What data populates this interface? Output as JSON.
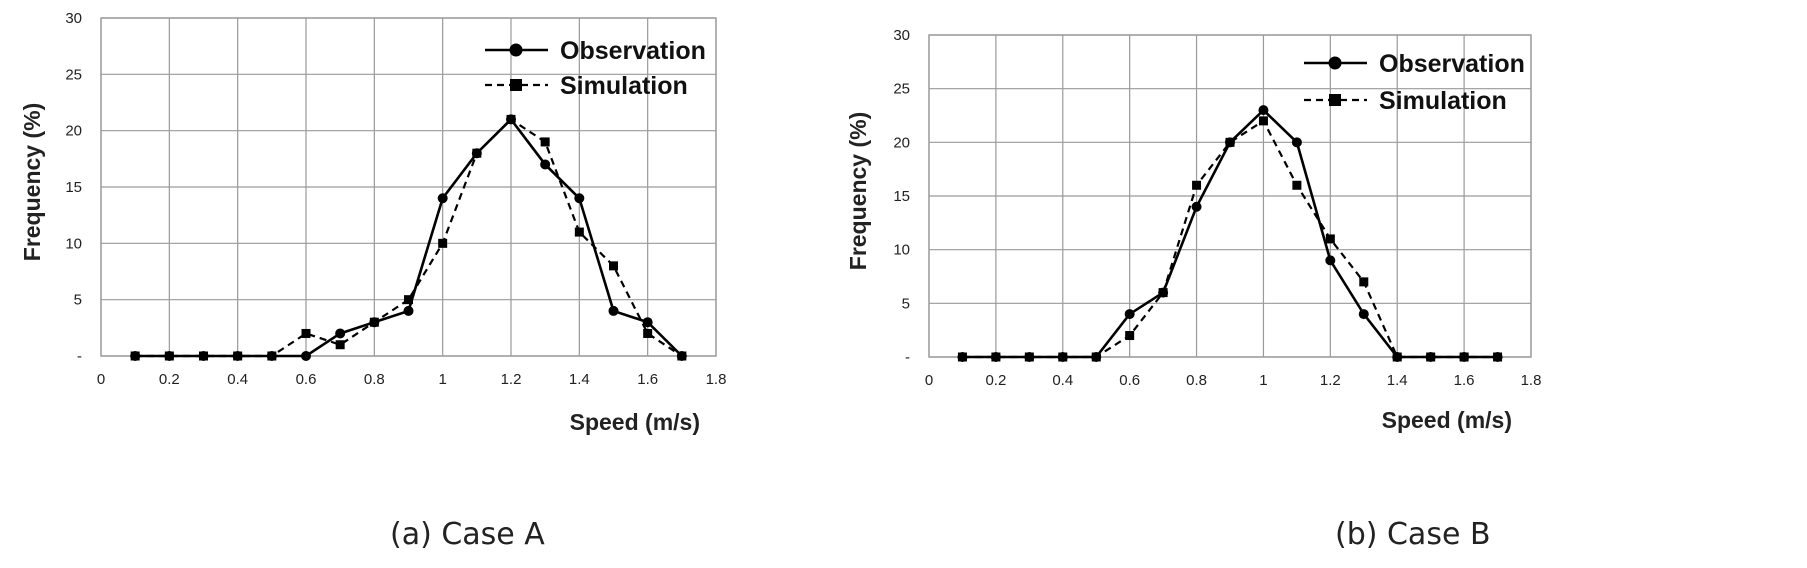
{
  "chart_data": [
    {
      "type": "line",
      "caption": "(a) Case A",
      "xlabel": "Speed (m/s)",
      "ylabel": "Frequency (%)",
      "xlim": [
        0,
        1.8
      ],
      "ylim": [
        0,
        30
      ],
      "x_ticks": [
        "0",
        "0.2",
        "0.4",
        "0.6",
        "0.8",
        "1",
        "1.2",
        "1.4",
        "1.6",
        "1.8"
      ],
      "y_ticks": [
        "-",
        "5",
        "10",
        "15",
        "20",
        "25",
        "30"
      ],
      "grid": true,
      "legend_position": "top-right",
      "x": [
        0.1,
        0.2,
        0.3,
        0.4,
        0.5,
        0.6,
        0.7,
        0.8,
        0.9,
        1.0,
        1.1,
        1.2,
        1.3,
        1.4,
        1.5,
        1.6,
        1.7
      ],
      "series": [
        {
          "name": "Observation",
          "marker": "circle",
          "style": "solid",
          "values": [
            0,
            0,
            0,
            0,
            0,
            0,
            2,
            3,
            4,
            14,
            18,
            21,
            17,
            14,
            4,
            3,
            0
          ]
        },
        {
          "name": "Simulation",
          "marker": "square",
          "style": "dashed",
          "values": [
            0,
            0,
            0,
            0,
            0,
            2,
            1,
            3,
            5,
            10,
            18,
            21,
            19,
            11,
            8,
            2,
            0
          ]
        }
      ]
    },
    {
      "type": "line",
      "caption": "(b) Case B",
      "xlabel": "Speed (m/s)",
      "ylabel": "Frequency (%)",
      "xlim": [
        0,
        1.8
      ],
      "ylim": [
        0,
        30
      ],
      "x_ticks": [
        "0",
        "0.2",
        "0.4",
        "0.6",
        "0.8",
        "1",
        "1.2",
        "1.4",
        "1.6",
        "1.8"
      ],
      "y_ticks": [
        "-",
        "5",
        "10",
        "15",
        "20",
        "25",
        "30"
      ],
      "grid": true,
      "legend_position": "top-right",
      "x": [
        0.1,
        0.2,
        0.3,
        0.4,
        0.5,
        0.6,
        0.7,
        0.8,
        0.9,
        1.0,
        1.1,
        1.2,
        1.3,
        1.4,
        1.5,
        1.6,
        1.7
      ],
      "series": [
        {
          "name": "Observation",
          "marker": "circle",
          "style": "solid",
          "values": [
            0,
            0,
            0,
            0,
            0,
            4,
            6,
            14,
            20,
            23,
            20,
            9,
            4,
            0,
            0,
            0,
            0
          ]
        },
        {
          "name": "Simulation",
          "marker": "square",
          "style": "dashed",
          "values": [
            0,
            0,
            0,
            0,
            0,
            2,
            6,
            16,
            20,
            22,
            16,
            11,
            7,
            0,
            0,
            0,
            0
          ]
        }
      ]
    }
  ]
}
